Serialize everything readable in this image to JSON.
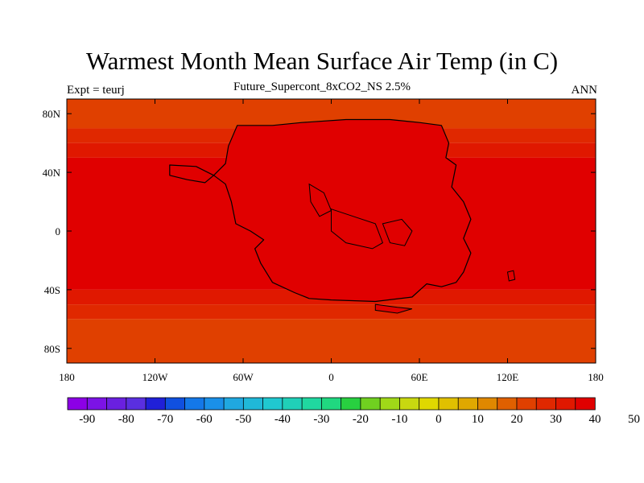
{
  "header": {
    "title": "Warmest Month Mean Surface Air Temp (in C)",
    "subtitle": "Future_Supercont_8xCO2_NS 2.5%",
    "left_label": "Expt = teurj",
    "right_label": "ANN"
  },
  "chart_data": {
    "type": "heatmap",
    "xlim": [
      -180,
      180
    ],
    "ylim": [
      -90,
      90
    ],
    "x_ticks": [
      {
        "value": -180,
        "label": "180"
      },
      {
        "value": -120,
        "label": "120W"
      },
      {
        "value": -60,
        "label": "60W"
      },
      {
        "value": 0,
        "label": "0"
      },
      {
        "value": 60,
        "label": "60E"
      },
      {
        "value": 120,
        "label": "120E"
      },
      {
        "value": 180,
        "label": "180"
      }
    ],
    "y_ticks": [
      {
        "value": 80,
        "label": "80N"
      },
      {
        "value": 40,
        "label": "40N"
      },
      {
        "value": 0,
        "label": "0"
      },
      {
        "value": -40,
        "label": "40S"
      },
      {
        "value": -80,
        "label": "80S"
      }
    ],
    "colorbar": {
      "min": -95,
      "step": 5,
      "labels": [
        "-90",
        "-80",
        "-70",
        "-60",
        "-50",
        "-40",
        "-30",
        "-20",
        "-10",
        "0",
        "10",
        "20",
        "30",
        "40",
        "50"
      ],
      "colors": [
        "#8c00e6",
        "#7c13e6",
        "#6a20e0",
        "#5a2fe0",
        "#2020d8",
        "#1050e0",
        "#1478e8",
        "#1a90e8",
        "#20a8e0",
        "#20b8d8",
        "#20c8d0",
        "#20d0b8",
        "#20d8a0",
        "#20d880",
        "#28d040",
        "#70d020",
        "#a0d818",
        "#c8d810",
        "#e0d800",
        "#e0c000",
        "#e0a800",
        "#e08800",
        "#e06000",
        "#e04000",
        "#e02800",
        "#e01800",
        "#e00000"
      ]
    },
    "zonal_bands": [
      {
        "lat_top": 90,
        "lat_bottom": 70,
        "value": 22
      },
      {
        "lat_top": 70,
        "lat_bottom": 60,
        "value": 27
      },
      {
        "lat_top": 60,
        "lat_bottom": 50,
        "value": 33
      },
      {
        "lat_top": 50,
        "lat_bottom": -40,
        "value": 37
      },
      {
        "lat_top": -40,
        "lat_bottom": -50,
        "value": 33
      },
      {
        "lat_top": -50,
        "lat_bottom": -60,
        "value": 27
      },
      {
        "lat_top": -60,
        "lat_bottom": -90,
        "value": 22
      }
    ],
    "land_value": 45,
    "land_coast_value": 42,
    "continent_outline": [
      [
        -64,
        72
      ],
      [
        -40,
        72
      ],
      [
        -20,
        74
      ],
      [
        10,
        76
      ],
      [
        40,
        76
      ],
      [
        60,
        74
      ],
      [
        75,
        72
      ],
      [
        80,
        60
      ],
      [
        78,
        50
      ],
      [
        85,
        45
      ],
      [
        82,
        30
      ],
      [
        90,
        20
      ],
      [
        95,
        8
      ],
      [
        90,
        -5
      ],
      [
        95,
        -15
      ],
      [
        90,
        -28
      ],
      [
        85,
        -35
      ],
      [
        75,
        -38
      ],
      [
        65,
        -36
      ],
      [
        55,
        -45
      ],
      [
        30,
        -48
      ],
      [
        0,
        -47
      ],
      [
        -15,
        -46
      ],
      [
        -25,
        -42
      ],
      [
        -40,
        -35
      ],
      [
        -48,
        -22
      ],
      [
        -52,
        -12
      ],
      [
        -46,
        -6
      ],
      [
        -55,
        0
      ],
      [
        -65,
        5
      ],
      [
        -68,
        20
      ],
      [
        -72,
        32
      ],
      [
        -80,
        38
      ],
      [
        -92,
        44
      ],
      [
        -110,
        45
      ],
      [
        -110,
        38
      ],
      [
        -98,
        35
      ],
      [
        -86,
        33
      ],
      [
        -80,
        38
      ],
      [
        -72,
        46
      ],
      [
        -70,
        58
      ],
      [
        -64,
        72
      ]
    ],
    "islands": [
      [
        [
          30,
          -50
        ],
        [
          45,
          -52
        ],
        [
          55,
          -53
        ],
        [
          45,
          -56
        ],
        [
          30,
          -54
        ]
      ],
      [
        [
          120,
          -28
        ],
        [
          124,
          -27
        ],
        [
          125,
          -33
        ],
        [
          121,
          -34
        ]
      ]
    ],
    "inland_seas": [
      [
        [
          -15,
          32
        ],
        [
          -5,
          26
        ],
        [
          0,
          14
        ],
        [
          -8,
          10
        ],
        [
          -14,
          20
        ]
      ],
      [
        [
          0,
          15
        ],
        [
          15,
          10
        ],
        [
          30,
          5
        ],
        [
          35,
          -8
        ],
        [
          28,
          -12
        ],
        [
          10,
          -8
        ],
        [
          0,
          0
        ]
      ],
      [
        [
          35,
          5
        ],
        [
          48,
          8
        ],
        [
          55,
          0
        ],
        [
          50,
          -10
        ],
        [
          40,
          -8
        ]
      ]
    ]
  }
}
